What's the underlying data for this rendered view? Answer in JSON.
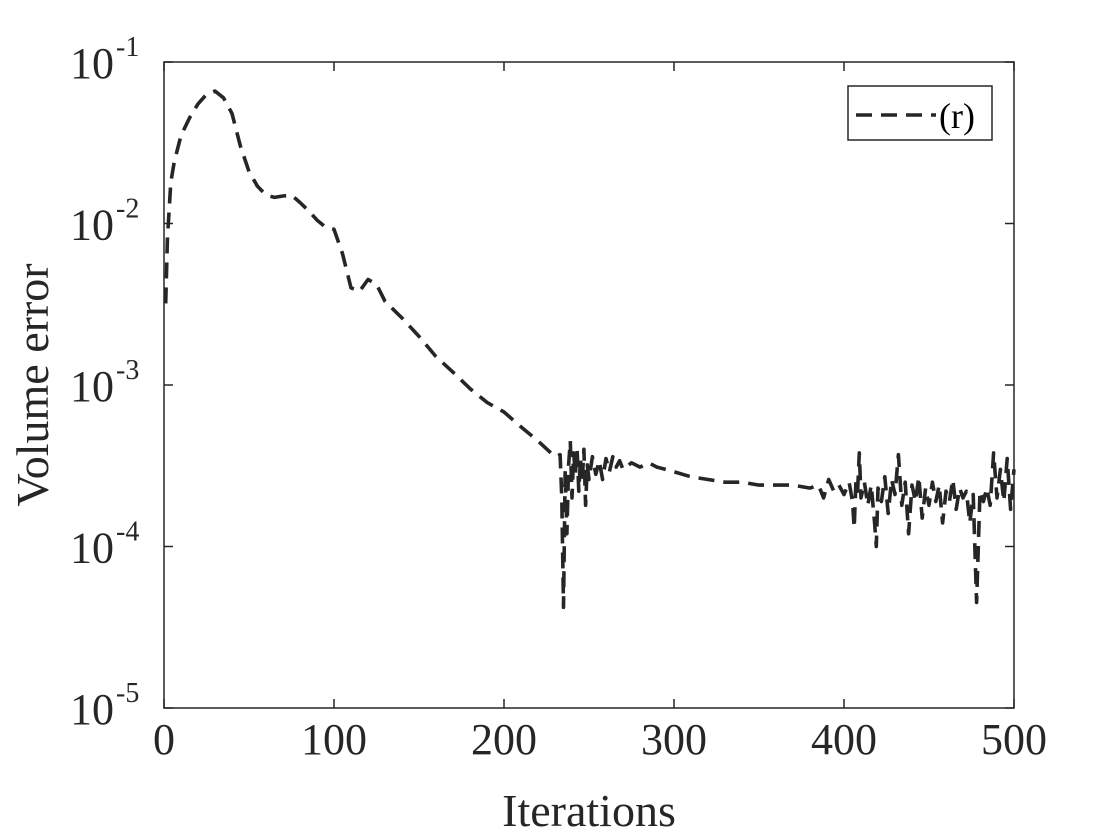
{
  "chart_data": {
    "type": "line",
    "title": "",
    "xlabel": "Iterations",
    "ylabel": "Volume error",
    "xlim": [
      0,
      500
    ],
    "ylim": [
      1e-05,
      0.1
    ],
    "yscale": "log",
    "grid": false,
    "legend_position": "top-right",
    "x_ticks": [
      {
        "value": 0,
        "label": "0"
      },
      {
        "value": 100,
        "label": "100"
      },
      {
        "value": 200,
        "label": "200"
      },
      {
        "value": 300,
        "label": "300"
      },
      {
        "value": 400,
        "label": "400"
      },
      {
        "value": 500,
        "label": "500"
      }
    ],
    "y_ticks": [
      {
        "value": 1e-05,
        "base": "10",
        "exp": "-5"
      },
      {
        "value": 0.0001,
        "base": "10",
        "exp": "-4"
      },
      {
        "value": 0.001,
        "base": "10",
        "exp": "-3"
      },
      {
        "value": 0.01,
        "base": "10",
        "exp": "-2"
      },
      {
        "value": 0.1,
        "base": "10",
        "exp": "-1"
      }
    ],
    "series": [
      {
        "name": "(r)",
        "color": "#262626",
        "line_style": "dashed",
        "points": [
          [
            1,
            0.0032
          ],
          [
            2,
            0.008
          ],
          [
            4,
            0.018
          ],
          [
            6,
            0.024
          ],
          [
            8,
            0.029
          ],
          [
            10,
            0.035
          ],
          [
            15,
            0.045
          ],
          [
            20,
            0.055
          ],
          [
            25,
            0.063
          ],
          [
            30,
            0.066
          ],
          [
            35,
            0.06
          ],
          [
            40,
            0.048
          ],
          [
            45,
            0.03
          ],
          [
            50,
            0.021
          ],
          [
            55,
            0.017
          ],
          [
            60,
            0.015
          ],
          [
            65,
            0.0145
          ],
          [
            70,
            0.0148
          ],
          [
            75,
            0.015
          ],
          [
            80,
            0.0135
          ],
          [
            85,
            0.012
          ],
          [
            90,
            0.0105
          ],
          [
            95,
            0.0095
          ],
          [
            100,
            0.0092
          ],
          [
            105,
            0.0065
          ],
          [
            110,
            0.004
          ],
          [
            115,
            0.0038
          ],
          [
            120,
            0.0045
          ],
          [
            125,
            0.0042
          ],
          [
            130,
            0.0033
          ],
          [
            140,
            0.0026
          ],
          [
            150,
            0.002
          ],
          [
            160,
            0.0015
          ],
          [
            170,
            0.0012
          ],
          [
            180,
            0.00095
          ],
          [
            190,
            0.00078
          ],
          [
            200,
            0.00068
          ],
          [
            210,
            0.00055
          ],
          [
            220,
            0.00045
          ],
          [
            230,
            0.00036
          ],
          [
            233,
            0.00037
          ],
          [
            234,
            0.0002
          ],
          [
            235,
            4.2e-05
          ],
          [
            236,
            0.0003
          ],
          [
            237,
            0.00012
          ],
          [
            238,
            0.00032
          ],
          [
            239,
            0.00045
          ],
          [
            240,
            0.0002
          ],
          [
            241,
            0.00038
          ],
          [
            242,
            0.00028
          ],
          [
            243,
            0.0004
          ],
          [
            244,
            0.00022
          ],
          [
            245,
            0.00035
          ],
          [
            246,
            0.00025
          ],
          [
            247,
            0.0004
          ],
          [
            248,
            0.00018
          ],
          [
            249,
            0.00032
          ],
          [
            250,
            0.00026
          ],
          [
            252,
            0.00036
          ],
          [
            254,
            0.00028
          ],
          [
            256,
            0.00034
          ],
          [
            258,
            0.00026
          ],
          [
            260,
            0.00035
          ],
          [
            262,
            0.00029
          ],
          [
            264,
            0.00036
          ],
          [
            266,
            0.00031
          ],
          [
            268,
            0.00034
          ],
          [
            270,
            0.0003
          ],
          [
            275,
            0.00033
          ],
          [
            280,
            0.00031
          ],
          [
            285,
            0.00033
          ],
          [
            290,
            0.00031
          ],
          [
            295,
            0.0003
          ],
          [
            300,
            0.00029
          ],
          [
            310,
            0.00027
          ],
          [
            320,
            0.00026
          ],
          [
            330,
            0.00025
          ],
          [
            340,
            0.00025
          ],
          [
            350,
            0.00024
          ],
          [
            360,
            0.00024
          ],
          [
            370,
            0.00024
          ],
          [
            380,
            0.00023
          ],
          [
            385,
            0.00024
          ],
          [
            388,
            0.0002
          ],
          [
            391,
            0.00026
          ],
          [
            394,
            0.00022
          ],
          [
            397,
            0.00024
          ],
          [
            400,
            0.00021
          ],
          [
            403,
            0.00025
          ],
          [
            405,
            0.00019
          ],
          [
            406,
            0.00013
          ],
          [
            407,
            0.00025
          ],
          [
            408,
            0.00022
          ],
          [
            409,
            0.00038
          ],
          [
            410,
            0.0002
          ],
          [
            412,
            0.00025
          ],
          [
            414,
            0.00018
          ],
          [
            416,
            0.00024
          ],
          [
            418,
            0.00014
          ],
          [
            419,
            0.0001
          ],
          [
            420,
            0.00023
          ],
          [
            422,
            0.00019
          ],
          [
            424,
            0.00027
          ],
          [
            426,
            0.00016
          ],
          [
            428,
            0.00026
          ],
          [
            430,
            0.00021
          ],
          [
            432,
            0.00037
          ],
          [
            434,
            0.00018
          ],
          [
            436,
            0.00025
          ],
          [
            438,
            0.00012
          ],
          [
            440,
            0.00024
          ],
          [
            442,
            0.00019
          ],
          [
            444,
            0.00027
          ],
          [
            446,
            0.00015
          ],
          [
            448,
            0.00023
          ],
          [
            450,
            0.00018
          ],
          [
            452,
            0.00025
          ],
          [
            454,
            0.00019
          ],
          [
            456,
            0.00024
          ],
          [
            458,
            0.00014
          ],
          [
            460,
            0.00022
          ],
          [
            462,
            0.00019
          ],
          [
            464,
            0.00026
          ],
          [
            466,
            0.00017
          ],
          [
            468,
            0.00023
          ],
          [
            470,
            0.0002
          ],
          [
            472,
            0.00022
          ],
          [
            474,
            0.00014
          ],
          [
            476,
            0.00021
          ],
          [
            478,
            4.5e-05
          ],
          [
            480,
            0.00022
          ],
          [
            482,
            0.00019
          ],
          [
            484,
            0.00023
          ],
          [
            486,
            0.00018
          ],
          [
            488,
            0.00038
          ],
          [
            490,
            0.0002
          ],
          [
            492,
            0.0003
          ],
          [
            494,
            0.00019
          ],
          [
            496,
            0.00035
          ],
          [
            498,
            0.00017
          ],
          [
            500,
            0.0003
          ]
        ]
      }
    ]
  }
}
